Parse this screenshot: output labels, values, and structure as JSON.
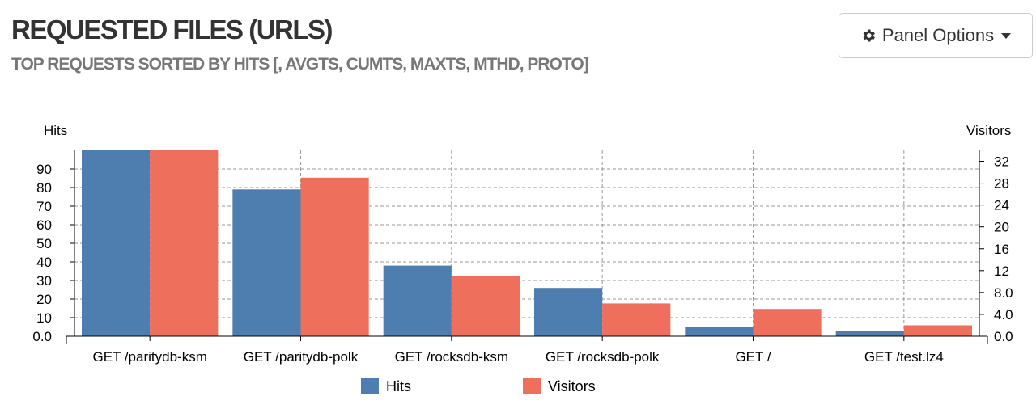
{
  "panel": {
    "title": "REQUESTED FILES (URLS)",
    "subtitle": "TOP REQUESTS SORTED BY HITS [, AVGTS, CUMTS, MAXTS, MTHD, PROTO]",
    "options_label": "Panel Options",
    "options_icon": "gear-icon",
    "options_caret_icon": "caret-down-icon"
  },
  "chart_data": {
    "type": "bar",
    "categories": [
      "GET /paritydb-ksm",
      "GET /paritydb-polk",
      "GET /rocksdb-ksm",
      "GET /rocksdb-polk",
      "GET /",
      "GET /test.lz4"
    ],
    "series": [
      {
        "name": "Hits",
        "axis": "left",
        "color": "#4e7eb0",
        "values": [
          100,
          79,
          38,
          26,
          5,
          3
        ]
      },
      {
        "name": "Visitors",
        "axis": "right",
        "color": "#ee6f5c",
        "values": [
          34,
          29,
          11,
          6,
          5,
          2
        ]
      }
    ],
    "ylabel_left": "Hits",
    "ylabel_right": "Visitors",
    "ylim_left": [
      0,
      100
    ],
    "ylim_right": [
      0,
      34
    ],
    "yticks_left": [
      "0.0",
      "10",
      "20",
      "30",
      "40",
      "50",
      "60",
      "70",
      "80",
      "90"
    ],
    "yticks_left_values": [
      0,
      10,
      20,
      30,
      40,
      50,
      60,
      70,
      80,
      90
    ],
    "yticks_right": [
      "0.0",
      "4.0",
      "8.0",
      "12",
      "16",
      "20",
      "24",
      "28",
      "32"
    ],
    "yticks_right_values": [
      0,
      4,
      8,
      12,
      16,
      20,
      24,
      28,
      32
    ],
    "grid": true,
    "legend_position": "bottom"
  }
}
